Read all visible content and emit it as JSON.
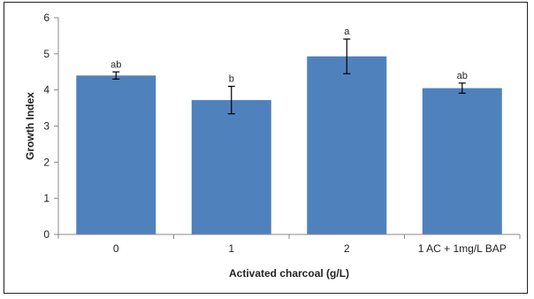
{
  "chart_data": {
    "type": "bar",
    "categories": [
      "0",
      "1",
      "2",
      "1 AC + 1mg/L BAP"
    ],
    "values": [
      4.4,
      3.72,
      4.93,
      4.05
    ],
    "errors": [
      0.1,
      0.38,
      0.48,
      0.14
    ],
    "significance": [
      "ab",
      "b",
      "a",
      "ab"
    ],
    "title": "",
    "xlabel": "Activated charcoal  (g/L)",
    "ylabel": "Growth Index",
    "ylim": [
      0,
      6
    ],
    "yticks": [
      "0",
      "1",
      "2",
      "3",
      "4",
      "5",
      "6"
    ],
    "grid": false,
    "bar_color": "#4F81BD"
  }
}
